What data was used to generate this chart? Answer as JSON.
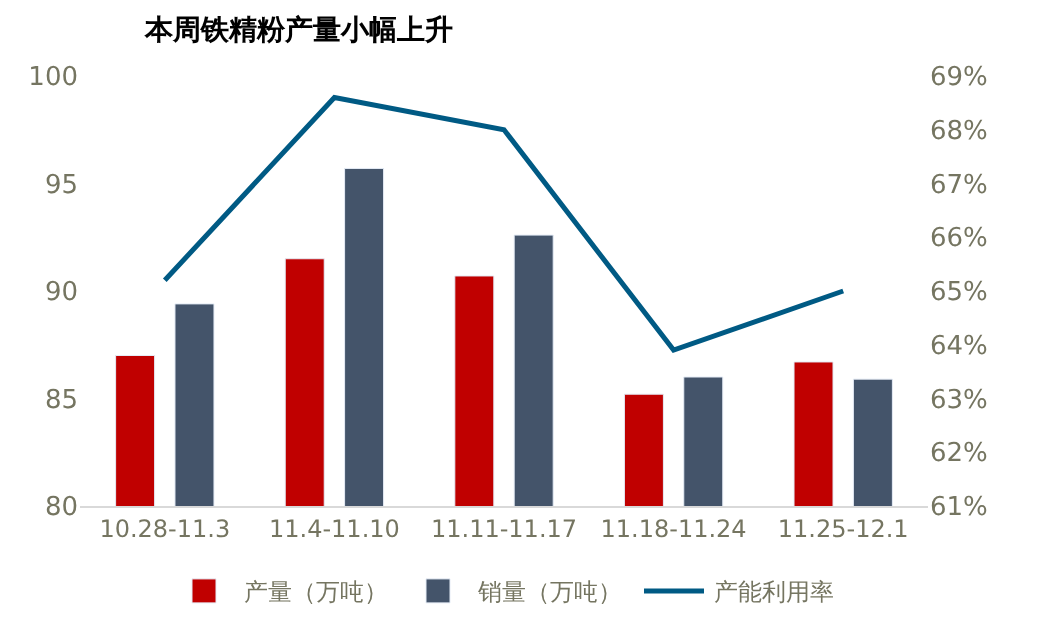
{
  "chart_data": {
    "type": "bar",
    "title": "本周铁精粉产量小幅上升",
    "categories": [
      "10.28-11.3",
      "11.4-11.10",
      "11.11-11.17",
      "11.18-11.24",
      "11.25-12.1"
    ],
    "series": [
      {
        "name": "产量（万吨）",
        "color": "#c00000",
        "values": [
          87.0,
          91.5,
          90.7,
          85.2,
          86.7
        ]
      },
      {
        "name": "销量（万吨）",
        "color": "#44546a",
        "values": [
          89.4,
          95.7,
          92.6,
          86.0,
          85.9
        ]
      },
      {
        "name": "产能利用率",
        "type": "line",
        "axis": "y2",
        "color": "#005a84",
        "values": [
          65.2,
          68.6,
          68.0,
          63.9,
          65.0
        ]
      }
    ],
    "ylim": [
      80,
      100
    ],
    "yticks": [
      80,
      85,
      90,
      95,
      100
    ],
    "y2lim": [
      61,
      69
    ],
    "y2ticks": [
      {
        "value": 61,
        "label": "61%"
      },
      {
        "value": 62,
        "label": "62%"
      },
      {
        "value": 63,
        "label": "63%"
      },
      {
        "value": 64,
        "label": "64%"
      },
      {
        "value": 65,
        "label": "65%"
      },
      {
        "value": 66,
        "label": "66%"
      },
      {
        "value": 67,
        "label": "67%"
      },
      {
        "value": 68,
        "label": "68%"
      },
      {
        "value": 69,
        "label": "69%"
      }
    ],
    "legend": "bottom",
    "marker": "none",
    "line_style": "solid"
  }
}
